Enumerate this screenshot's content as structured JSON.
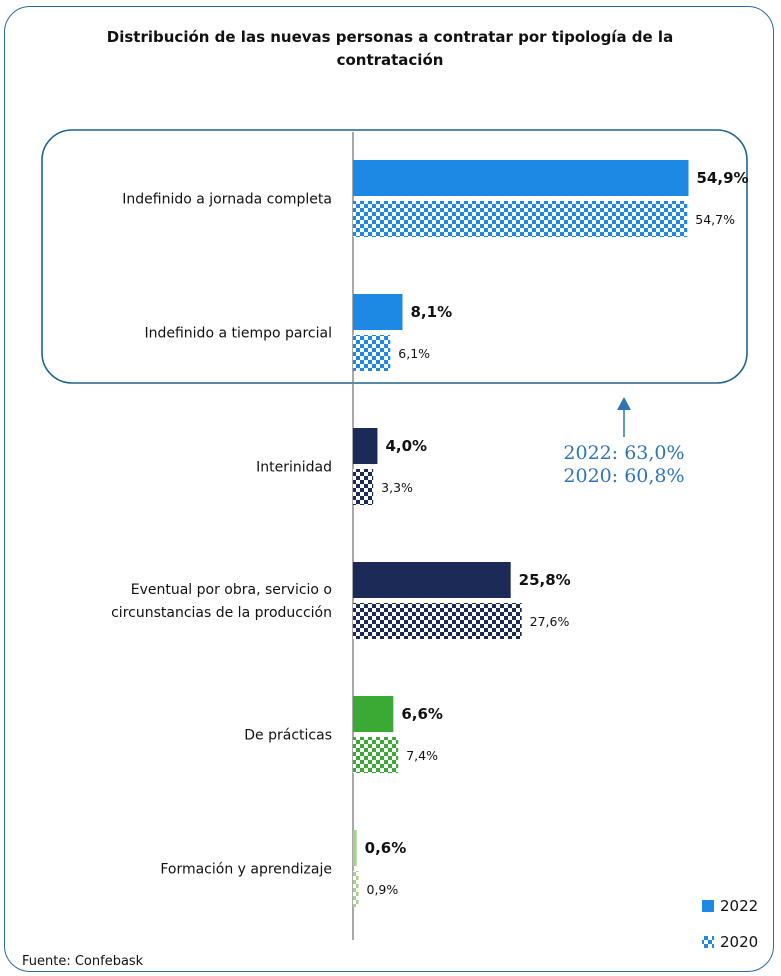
{
  "title": "Distribución de las nuevas personas a contratar por tipología de la contratación",
  "source": "Fuente: Confebask",
  "colors": {
    "blue_light": "#1e88e5",
    "navy": "#1b2a57",
    "green": "#3aaa35",
    "green_light": "#a8d08d",
    "highlight_border": "#1f6391",
    "annotation": "#2e75b6"
  },
  "chart_data": {
    "type": "bar",
    "orientation": "horizontal",
    "title": "Distribución de las nuevas personas a contratar por tipología de la contratación",
    "categories": [
      "Indefinido a jornada completa",
      "Indefinido a tiempo parcial",
      "Interinidad",
      "Eventual por obra, servicio o circunstancias de la producción",
      "De prácticas",
      "Formación y aprendizaje"
    ],
    "category_lines": [
      [
        "Indefinido a jornada completa"
      ],
      [
        "Indefinido a tiempo parcial"
      ],
      [
        "Interinidad"
      ],
      [
        "Eventual por obra, servicio o",
        "circunstancias de la producción"
      ],
      [
        "De prácticas"
      ],
      [
        "Formación y aprendizaje"
      ]
    ],
    "category_colors": [
      "#1e88e5",
      "#1e88e5",
      "#1b2a57",
      "#1b2a57",
      "#3aaa35",
      "#a8d08d"
    ],
    "series": [
      {
        "name": "2022",
        "pattern": "solid",
        "values": [
          54.9,
          8.1,
          4.0,
          25.8,
          6.6,
          0.6
        ],
        "labels": [
          "54,9%",
          "8,1%",
          "4,0%",
          "25,8%",
          "6,6%",
          "0,6%"
        ]
      },
      {
        "name": "2020",
        "pattern": "checkered",
        "values": [
          54.7,
          6.1,
          3.3,
          27.6,
          7.4,
          0.9
        ],
        "labels": [
          "54,7%",
          "6,1%",
          "3,3%",
          "27,6%",
          "7,4%",
          "0,9%"
        ]
      }
    ],
    "highlight": {
      "categories": [
        "Indefinido a jornada completa",
        "Indefinido a tiempo parcial"
      ],
      "annotation_lines": [
        "2022: 63,0%",
        "2020: 60,8%"
      ]
    },
    "legend": {
      "position": "bottom-right",
      "entries": [
        "2022",
        "2020"
      ]
    },
    "xlim": [
      0,
      60
    ],
    "grid": false
  }
}
